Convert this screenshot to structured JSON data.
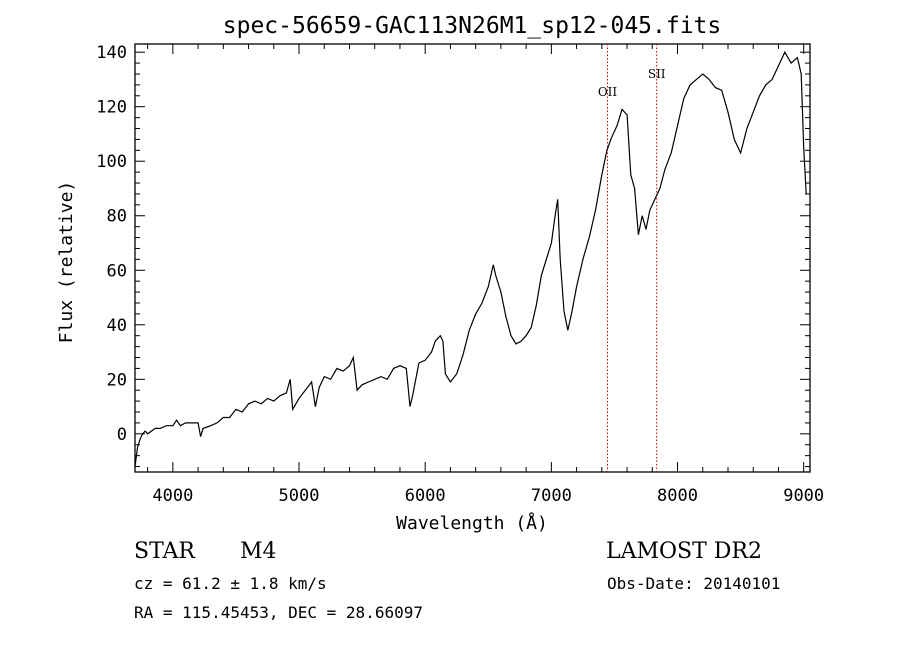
{
  "chart_data": {
    "type": "line",
    "title": "spec-56659-GAC113N26M1_sp12-045.fits",
    "xlabel": "Wavelength (Å)",
    "ylabel": "Flux (relative)",
    "xlim": [
      3700,
      9050
    ],
    "ylim": [
      -14,
      143
    ],
    "x_ticks": [
      4000,
      5000,
      6000,
      7000,
      8000,
      9000
    ],
    "y_ticks": [
      0,
      20,
      40,
      60,
      80,
      100,
      120,
      140
    ],
    "grid": false,
    "series": [
      {
        "name": "flux",
        "points": [
          [
            3700,
            -12
          ],
          [
            3720,
            -5
          ],
          [
            3740,
            -2
          ],
          [
            3760,
            0
          ],
          [
            3780,
            1
          ],
          [
            3800,
            0
          ],
          [
            3830,
            1
          ],
          [
            3860,
            2
          ],
          [
            3900,
            2
          ],
          [
            3950,
            3
          ],
          [
            4000,
            3
          ],
          [
            4030,
            5
          ],
          [
            4060,
            3
          ],
          [
            4100,
            4
          ],
          [
            4150,
            4
          ],
          [
            4200,
            4
          ],
          [
            4220,
            -1
          ],
          [
            4240,
            2
          ],
          [
            4300,
            3
          ],
          [
            4350,
            4
          ],
          [
            4400,
            6
          ],
          [
            4450,
            6
          ],
          [
            4500,
            9
          ],
          [
            4550,
            8
          ],
          [
            4600,
            11
          ],
          [
            4650,
            12
          ],
          [
            4700,
            11
          ],
          [
            4750,
            13
          ],
          [
            4800,
            12
          ],
          [
            4850,
            14
          ],
          [
            4900,
            15
          ],
          [
            4930,
            20
          ],
          [
            4950,
            9
          ],
          [
            5000,
            13
          ],
          [
            5050,
            16
          ],
          [
            5100,
            19
          ],
          [
            5130,
            10
          ],
          [
            5160,
            17
          ],
          [
            5200,
            21
          ],
          [
            5250,
            20
          ],
          [
            5300,
            24
          ],
          [
            5350,
            23
          ],
          [
            5400,
            25
          ],
          [
            5430,
            28
          ],
          [
            5460,
            16
          ],
          [
            5500,
            18
          ],
          [
            5550,
            19
          ],
          [
            5600,
            20
          ],
          [
            5650,
            21
          ],
          [
            5700,
            20
          ],
          [
            5750,
            24
          ],
          [
            5800,
            25
          ],
          [
            5850,
            24
          ],
          [
            5880,
            10
          ],
          [
            5900,
            14
          ],
          [
            5950,
            26
          ],
          [
            6000,
            27
          ],
          [
            6050,
            30
          ],
          [
            6080,
            34
          ],
          [
            6120,
            36
          ],
          [
            6140,
            34
          ],
          [
            6160,
            22
          ],
          [
            6200,
            19
          ],
          [
            6250,
            22
          ],
          [
            6300,
            29
          ],
          [
            6350,
            38
          ],
          [
            6400,
            44
          ],
          [
            6450,
            48
          ],
          [
            6500,
            54
          ],
          [
            6540,
            62
          ],
          [
            6560,
            58
          ],
          [
            6600,
            52
          ],
          [
            6640,
            43
          ],
          [
            6680,
            36
          ],
          [
            6720,
            33
          ],
          [
            6760,
            34
          ],
          [
            6800,
            36
          ],
          [
            6840,
            39
          ],
          [
            6880,
            47
          ],
          [
            6920,
            58
          ],
          [
            6960,
            64
          ],
          [
            7000,
            70
          ],
          [
            7030,
            80
          ],
          [
            7050,
            86
          ],
          [
            7070,
            64
          ],
          [
            7100,
            45
          ],
          [
            7130,
            38
          ],
          [
            7160,
            44
          ],
          [
            7200,
            54
          ],
          [
            7250,
            64
          ],
          [
            7300,
            72
          ],
          [
            7350,
            82
          ],
          [
            7400,
            95
          ],
          [
            7440,
            104
          ],
          [
            7480,
            109
          ],
          [
            7520,
            113
          ],
          [
            7560,
            119
          ],
          [
            7600,
            117
          ],
          [
            7630,
            95
          ],
          [
            7660,
            90
          ],
          [
            7690,
            73
          ],
          [
            7720,
            80
          ],
          [
            7750,
            75
          ],
          [
            7780,
            82
          ],
          [
            7820,
            86
          ],
          [
            7860,
            90
          ],
          [
            7900,
            97
          ],
          [
            7950,
            103
          ],
          [
            8000,
            113
          ],
          [
            8050,
            123
          ],
          [
            8100,
            128
          ],
          [
            8150,
            130
          ],
          [
            8200,
            132
          ],
          [
            8250,
            130
          ],
          [
            8300,
            127
          ],
          [
            8350,
            126
          ],
          [
            8400,
            118
          ],
          [
            8450,
            108
          ],
          [
            8500,
            103
          ],
          [
            8550,
            112
          ],
          [
            8600,
            118
          ],
          [
            8650,
            124
          ],
          [
            8700,
            128
          ],
          [
            8750,
            130
          ],
          [
            8800,
            135
          ],
          [
            8850,
            140
          ],
          [
            8900,
            136
          ],
          [
            8950,
            138
          ],
          [
            8980,
            132
          ],
          [
            9000,
            105
          ],
          [
            9020,
            88
          ]
        ]
      }
    ],
    "annotations": [
      {
        "label": "OII",
        "x": 7445
      },
      {
        "label": "SII",
        "x": 7835
      }
    ]
  },
  "info": {
    "object_class": "STAR",
    "subclass": "M4",
    "survey": "LAMOST DR2",
    "cz": "cz = 61.2 ± 1.8 km/s",
    "obs_date": "Obs-Date: 20140101",
    "radec": "RA = 115.45453, DEC =  28.66097"
  },
  "colors": {
    "line": "#000000",
    "marker_line": "#cc0000",
    "background": "#ffffff"
  }
}
